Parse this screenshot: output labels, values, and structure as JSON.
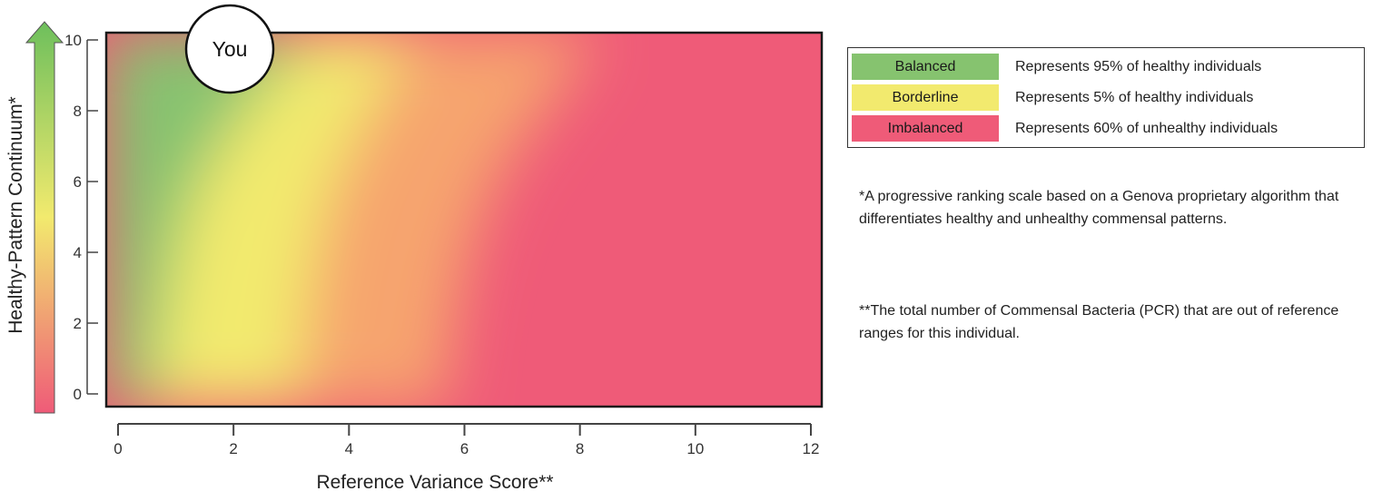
{
  "chart_data": {
    "type": "heatmap",
    "title": "",
    "xlabel": "Reference Variance Score**",
    "ylabel": "Healthy-Pattern Continuum*",
    "xlim": [
      0,
      12
    ],
    "ylim": [
      0,
      10
    ],
    "x_ticks": [
      "0",
      "2",
      "4",
      "6",
      "8",
      "10",
      "12"
    ],
    "y_ticks": [
      "0",
      "2",
      "4",
      "6",
      "8",
      "10"
    ],
    "grid": false,
    "color_zones": [
      {
        "name": "Balanced",
        "color": "#86c36f"
      },
      {
        "name": "Borderline",
        "color": "#f2ea6e"
      },
      {
        "name": "Imbalanced",
        "color": "#ef5b78"
      }
    ],
    "marker": {
      "label": "You",
      "x": 2,
      "y": 10
    }
  },
  "legend": {
    "rows": [
      {
        "label": "Balanced",
        "description": "Represents 95% of healthy individuals",
        "color": "#86c36f"
      },
      {
        "label": "Borderline",
        "description": "Represents 5% of healthy individuals",
        "color": "#f2ea6e"
      },
      {
        "label": "Imbalanced",
        "description": "Represents 60% of unhealthy individuals",
        "color": "#ef5b78"
      }
    ]
  },
  "footnotes": {
    "healthy_pattern": "*A progressive ranking scale based on a Genova proprietary algorithm that differentiates healthy and unhealthy commensal patterns.",
    "variance_score": "**The total number of Commensal Bacteria (PCR) that are out of reference ranges for this individual."
  },
  "colors": {
    "arrow_top": "#6dbf5c",
    "arrow_bottom": "#ef5b78",
    "frame": "#1a1a1a"
  }
}
